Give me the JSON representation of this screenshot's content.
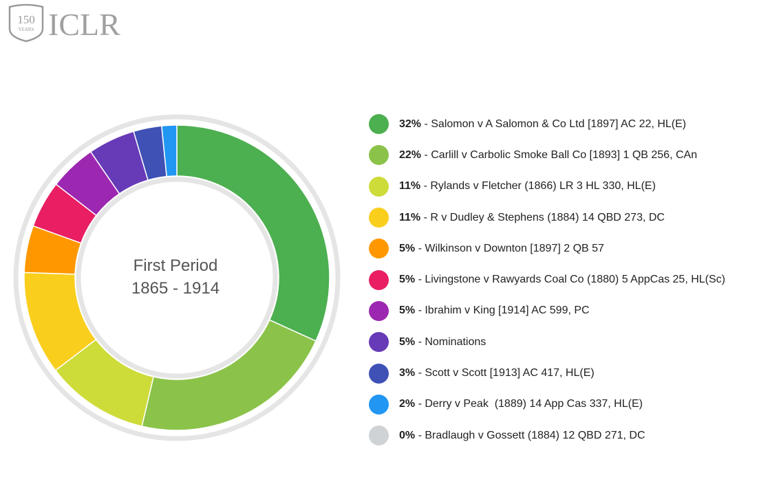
{
  "logo": {
    "text": "ICLR",
    "badge_number": "150",
    "badge_text": "YEARS"
  },
  "chart_data": {
    "type": "pie",
    "donut": true,
    "center_label": [
      "First Period",
      "1865 - 1914"
    ],
    "slices": [
      {
        "pct": "32%",
        "value": 32,
        "label": "Salomon v A Salomon & Co Ltd [1897] AC 22, HL(E)",
        "color": "#4caf50"
      },
      {
        "pct": "22%",
        "value": 22,
        "label": "Carlill v Carbolic Smoke Ball Co [1893] 1 QB 256, CAn",
        "color": "#8bc34a"
      },
      {
        "pct": "11%",
        "value": 11,
        "label": "Rylands v Fletcher (1866) LR 3 HL 330, HL(E)",
        "color": "#cddc39"
      },
      {
        "pct": "11%",
        "value": 11,
        "label": "R v Dudley & Stephens (1884) 14 QBD 273, DC",
        "color": "#f9ce1d"
      },
      {
        "pct": "5%",
        "value": 5,
        "label": "Wilkinson v Downton [1897] 2 QB 57",
        "color": "#ff9800"
      },
      {
        "pct": "5%",
        "value": 5,
        "label": "Livingstone v Rawyards Coal Co (1880) 5 AppCas 25, HL(Sc)",
        "color": "#e91e63"
      },
      {
        "pct": "5%",
        "value": 5,
        "label": "Ibrahim v King [1914] AC 599, PC",
        "color": "#9c27b0"
      },
      {
        "pct": "5%",
        "value": 5,
        "label": "Nominations",
        "color": "#673ab7"
      },
      {
        "pct": "3%",
        "value": 3,
        "label": "Scott v Scott [1913] AC 417, HL(E)",
        "color": "#3f51b5"
      },
      {
        "pct": "2%",
        "value": 1.6,
        "label": "Derry v Peak  (1889) 14 App Cas 337, HL(E)",
        "color": "#2196f3"
      },
      {
        "pct": "0%",
        "value": 0,
        "label": "Bradlaugh v Gossett (1884) 12 QBD 271, DC",
        "color": "#d0d3d6"
      }
    ]
  }
}
